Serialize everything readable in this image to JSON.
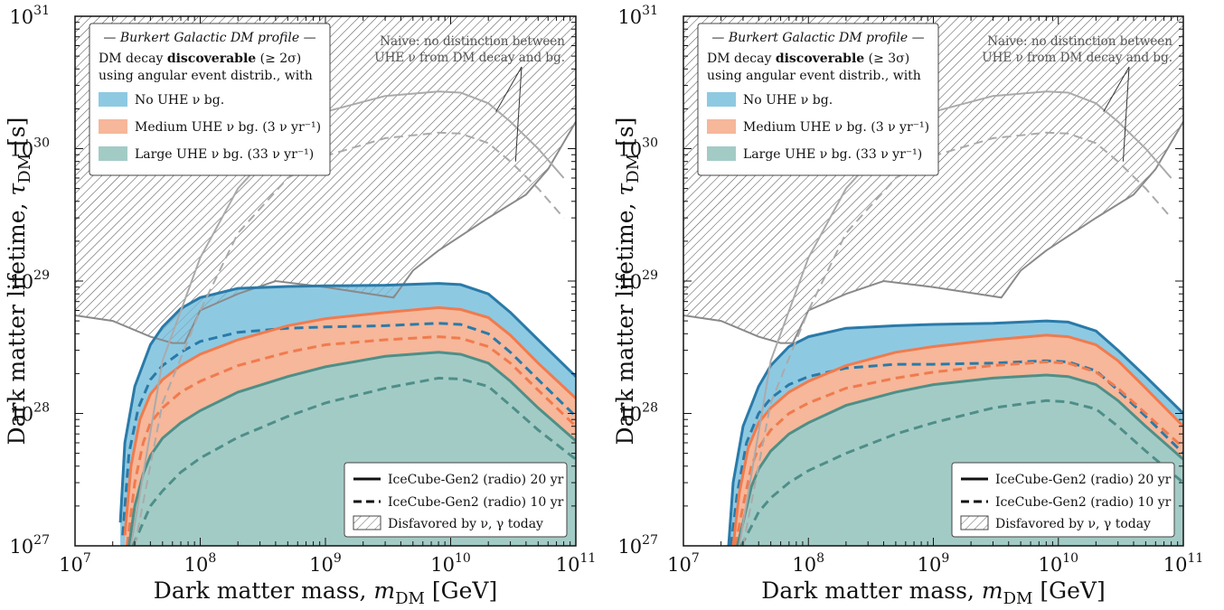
{
  "chart_data": [
    {
      "type": "area",
      "id": "left",
      "x_axis": {
        "label": "Dark matter mass, m_DM [GeV]",
        "scale": "log",
        "lim": [
          10000000.0,
          100000000000.0
        ],
        "tick_labels": [
          "10^7",
          "10^8",
          "10^9",
          "10^10",
          "10^11"
        ]
      },
      "y_axis": {
        "label": "Dark matter lifetime, τ_DM [s]",
        "scale": "log",
        "lim": [
          1e+27,
          1e+31
        ],
        "tick_labels": [
          "10^27",
          "10^28",
          "10^29",
          "10^30",
          "10^31"
        ]
      },
      "legend_upper": {
        "header": "— Burkert Galactic DM profile —",
        "title_line1_pre": "DM decay ",
        "title_line1_bold": "discoverable",
        "title_line1_post": " (≥ 2σ)",
        "title_line2": "using angular event distrib., with",
        "entries": [
          "No UHE ν bg.",
          "Medium UHE ν bg. (3 ν yr⁻¹)",
          "Large UHE ν bg. (33 ν yr⁻¹)"
        ]
      },
      "naive_annotation": [
        "Naive: no distinction between",
        "UHE ν from DM decay and bg."
      ],
      "legend_lower": [
        "IceCube-Gen2 (radio) 20 yr",
        "IceCube-Gen2 (radio) 10 yr",
        "Disfavored by ν, γ today"
      ],
      "series": [
        {
          "name": "No UHE ν bg.",
          "style": "20 yr",
          "color": "#2a7aa8",
          "fill": "#8ec9e2",
          "x": [
            23000000.0,
            25000000.0,
            30000000.0,
            40000000.0,
            50000000.0,
            70000000.0,
            100000000.0,
            200000000.0,
            500000000.0,
            1000000000.0,
            3000000000.0,
            8000000000.0,
            12000000000.0,
            20000000000.0,
            30000000000.0,
            50000000000.0,
            100000000000.0
          ],
          "y": [
            1.5e+27,
            6e+27,
            1.6e+28,
            3.3e+28,
            4.5e+28,
            6.2e+28,
            7.5e+28,
            8.8e+28,
            9.1e+28,
            9.2e+28,
            9.3e+28,
            9.6e+28,
            9.4e+28,
            8e+28,
            5.8e+28,
            3.6e+28,
            1.9e+28
          ]
        },
        {
          "name": "No UHE ν bg.",
          "style": "10 yr",
          "color": "#2a7aa8",
          "x": [
            24000000.0,
            27000000.0,
            32000000.0,
            40000000.0,
            50000000.0,
            70000000.0,
            100000000.0,
            200000000.0,
            500000000.0,
            1000000000.0,
            3000000000.0,
            8000000000.0,
            12000000000.0,
            20000000000.0,
            30000000000.0,
            50000000000.0,
            100000000000.0
          ],
          "y": [
            1.2e+27,
            5e+27,
            1.1e+28,
            1.8e+28,
            2.3e+28,
            2.9e+28,
            3.5e+28,
            4.1e+28,
            4.4e+28,
            4.5e+28,
            4.6e+28,
            4.8e+28,
            4.7e+28,
            4e+28,
            2.9e+28,
            1.8e+28,
            9.5e+27
          ]
        },
        {
          "name": "Medium UHE ν bg. (3 ν yr⁻¹)",
          "style": "20 yr",
          "color": "#f07b4e",
          "fill": "#f6b79a",
          "x": [
            25000000.0,
            28000000.0,
            33000000.0,
            40000000.0,
            50000000.0,
            70000000.0,
            100000000.0,
            200000000.0,
            500000000.0,
            1000000000.0,
            3000000000.0,
            8000000000.0,
            12000000000.0,
            20000000000.0,
            30000000000.0,
            50000000000.0,
            100000000000.0
          ],
          "y": [
            1.2e+27,
            4e+27,
            9e+27,
            1.4e+28,
            1.8e+28,
            2.3e+28,
            2.8e+28,
            3.6e+28,
            4.6e+28,
            5.2e+28,
            5.8e+28,
            6.3e+28,
            6.1e+28,
            5.3e+28,
            3.9e+28,
            2.4e+28,
            1.3e+28
          ]
        },
        {
          "name": "Medium UHE ν bg. (3 ν yr⁻¹)",
          "style": "10 yr",
          "color": "#f07b4e",
          "x": [
            26000000.0,
            30000000.0,
            35000000.0,
            40000000.0,
            50000000.0,
            70000000.0,
            100000000.0,
            200000000.0,
            500000000.0,
            1000000000.0,
            3000000000.0,
            8000000000.0,
            12000000000.0,
            20000000000.0,
            30000000000.0,
            50000000000.0,
            100000000000.0
          ],
          "y": [
            1e+27,
            3e+27,
            6e+27,
            8.5e+27,
            1.1e+28,
            1.45e+28,
            1.75e+28,
            2.3e+28,
            2.9e+28,
            3.3e+28,
            3.6e+28,
            3.8e+28,
            3.7e+28,
            3.2e+28,
            2.4e+28,
            1.5e+28,
            8e+27
          ]
        },
        {
          "name": "Large UHE ν bg. (33 ν yr⁻¹)",
          "style": "20 yr",
          "color": "#4e8f88",
          "fill": "#a3cbc6",
          "x": [
            27000000.0,
            30000000.0,
            35000000.0,
            40000000.0,
            50000000.0,
            70000000.0,
            100000000.0,
            200000000.0,
            500000000.0,
            1000000000.0,
            3000000000.0,
            8000000000.0,
            12000000000.0,
            20000000000.0,
            30000000000.0,
            50000000000.0,
            100000000000.0
          ],
          "y": [
            1e+27,
            2e+27,
            3.5e+27,
            4.8e+27,
            6.5e+27,
            8.5e+27,
            1.05e+28,
            1.45e+28,
            1.9e+28,
            2.25e+28,
            2.7e+28,
            2.9e+28,
            2.8e+28,
            2.4e+28,
            1.75e+28,
            1.1e+28,
            6.2e+27
          ]
        },
        {
          "name": "Large UHE ν bg. (33 ν yr⁻¹)",
          "style": "10 yr",
          "color": "#4e8f88",
          "x": [
            29000000.0,
            35000000.0,
            40000000.0,
            50000000.0,
            70000000.0,
            100000000.0,
            200000000.0,
            500000000.0,
            1000000000.0,
            3000000000.0,
            8000000000.0,
            12000000000.0,
            20000000000.0,
            30000000000.0,
            50000000000.0,
            100000000000.0
          ],
          "y": [
            1e+27,
            1.5e+27,
            2e+27,
            2.6e+27,
            3.6e+27,
            4.6e+27,
            6.6e+27,
            9.5e+27,
            1.2e+28,
            1.55e+28,
            1.85e+28,
            1.82e+28,
            1.6e+28,
            1.15e+28,
            7.5e+27,
            4.5e+27
          ]
        },
        {
          "name": "Naive",
          "style": "20 yr",
          "color": "#aaaaaa",
          "x": [
            28000000.0,
            50000000.0,
            100000000.0,
            200000000.0,
            500000000.0,
            1000000000.0,
            3000000000.0,
            8000000000.0,
            12000000000.0,
            20000000000.0,
            30000000000.0,
            50000000000.0,
            80000000000.0
          ],
          "y": [
            1e+27,
            2.5e+28,
            1.5e+29,
            5e+29,
            1.3e+30,
            1.9e+30,
            2.5e+30,
            2.7e+30,
            2.65e+30,
            2.2e+30,
            1.6e+30,
            1e+30,
            6e+29
          ]
        },
        {
          "name": "Naive",
          "style": "10 yr",
          "color": "#aaaaaa",
          "x": [
            30000000.0,
            50000000.0,
            100000000.0,
            200000000.0,
            500000000.0,
            1000000000.0,
            3000000000.0,
            8000000000.0,
            12000000000.0,
            20000000000.0,
            30000000000.0,
            50000000000.0,
            80000000000.0
          ],
          "y": [
            1e+27,
            1.2e+28,
            6e+28,
            2.3e+29,
            6e+29,
            8.8e+29,
            1.2e+30,
            1.32e+30,
            1.3e+30,
            1.1e+30,
            8e+29,
            5e+29,
            3e+29
          ]
        }
      ],
      "disfavored_boundary": {
        "x": [
          10000000.0,
          20000000.0,
          40000000.0,
          60000000.0,
          75000000.0,
          100000000.0,
          200000000.0,
          400000000.0,
          1000000000.0,
          3500000000.0,
          5000000000.0,
          8000000000.0,
          20000000000.0,
          40000000000.0,
          60000000000.0,
          100000000000.0
        ],
        "y": [
          5.5e+28,
          5e+28,
          3.8e+28,
          3.4e+28,
          3.4e+28,
          6e+28,
          8e+28,
          1e+29,
          9e+28,
          7.5e+28,
          1.2e+29,
          1.7e+29,
          3e+29,
          4.5e+29,
          7e+29,
          1.6e+30
        ]
      }
    },
    {
      "type": "area",
      "id": "right",
      "x_axis": {
        "label": "Dark matter mass, m_DM [GeV]",
        "scale": "log",
        "lim": [
          10000000.0,
          100000000000.0
        ],
        "tick_labels": [
          "10^7",
          "10^8",
          "10^9",
          "10^10",
          "10^11"
        ]
      },
      "y_axis": {
        "label": "Dark matter lifetime, τ_DM [s]",
        "scale": "log",
        "lim": [
          1e+27,
          1e+31
        ],
        "tick_labels": [
          "10^27",
          "10^28",
          "10^29",
          "10^30",
          "10^31"
        ]
      },
      "legend_upper": {
        "header": "— Burkert Galactic DM profile —",
        "title_line1_pre": "DM decay ",
        "title_line1_bold": "discoverable",
        "title_line1_post": " (≥ 3σ)",
        "title_line2": "using angular event distrib., with",
        "entries": [
          "No UHE ν bg.",
          "Medium UHE ν bg. (3 ν yr⁻¹)",
          "Large UHE ν bg. (33 ν yr⁻¹)"
        ]
      },
      "naive_annotation": [
        "Naive: no distinction between",
        "UHE ν from DM decay and bg."
      ],
      "legend_lower": [
        "IceCube-Gen2 (radio) 20 yr",
        "IceCube-Gen2 (radio) 10 yr",
        "Disfavored by ν, γ today"
      ],
      "series": [
        {
          "name": "No UHE ν bg.",
          "style": "20 yr",
          "color": "#2a7aa8",
          "fill": "#8ec9e2",
          "x": [
            23000000.0,
            25000000.0,
            30000000.0,
            40000000.0,
            50000000.0,
            70000000.0,
            100000000.0,
            200000000.0,
            500000000.0,
            1000000000.0,
            3000000000.0,
            8000000000.0,
            12000000000.0,
            20000000000.0,
            30000000000.0,
            50000000000.0,
            100000000000.0
          ],
          "y": [
            1e+27,
            3e+27,
            8e+27,
            1.6e+28,
            2.3e+28,
            3.2e+28,
            3.8e+28,
            4.4e+28,
            4.6e+28,
            4.7e+28,
            4.8e+28,
            5e+28,
            4.9e+28,
            4.2e+28,
            3e+28,
            1.9e+28,
            1e+28
          ]
        },
        {
          "name": "No UHE ν bg.",
          "style": "10 yr",
          "color": "#2a7aa8",
          "x": [
            24000000.0,
            27000000.0,
            32000000.0,
            40000000.0,
            50000000.0,
            70000000.0,
            100000000.0,
            200000000.0,
            500000000.0,
            1000000000.0,
            3000000000.0,
            8000000000.0,
            12000000000.0,
            20000000000.0,
            30000000000.0,
            50000000000.0,
            100000000000.0
          ],
          "y": [
            1e+27,
            2.5e+27,
            6e+27,
            1e+28,
            1.3e+28,
            1.65e+28,
            1.9e+28,
            2.2e+28,
            2.35e+28,
            2.35e+28,
            2.4e+28,
            2.5e+28,
            2.45e+28,
            2.1e+28,
            1.5e+28,
            9.5e+27,
            5e+27
          ]
        },
        {
          "name": "Medium UHE ν bg. (3 ν yr⁻¹)",
          "style": "20 yr",
          "color": "#f07b4e",
          "fill": "#f6b79a",
          "x": [
            25000000.0,
            28000000.0,
            33000000.0,
            40000000.0,
            50000000.0,
            70000000.0,
            100000000.0,
            200000000.0,
            500000000.0,
            1000000000.0,
            3000000000.0,
            8000000000.0,
            12000000000.0,
            20000000000.0,
            30000000000.0,
            50000000000.0,
            100000000000.0
          ],
          "y": [
            1e+27,
            2.5e+27,
            5.5e+27,
            8.5e+27,
            1.1e+28,
            1.45e+28,
            1.75e+28,
            2.3e+28,
            2.9e+28,
            3.2e+28,
            3.6e+28,
            3.9e+28,
            3.8e+28,
            3.3e+28,
            2.5e+28,
            1.55e+28,
            8e+27
          ]
        },
        {
          "name": "Medium UHE ν bg. (3 ν yr⁻¹)",
          "style": "10 yr",
          "color": "#f07b4e",
          "x": [
            26000000.0,
            30000000.0,
            35000000.0,
            40000000.0,
            50000000.0,
            70000000.0,
            100000000.0,
            200000000.0,
            500000000.0,
            1000000000.0,
            3000000000.0,
            8000000000.0,
            12000000000.0,
            20000000000.0,
            30000000000.0,
            50000000000.0,
            100000000000.0
          ],
          "y": [
            1e+27,
            2e+27,
            4e+27,
            5.5e+27,
            7.5e+27,
            1e+28,
            1.2e+28,
            1.55e+28,
            1.85e+28,
            2.05e+28,
            2.3e+28,
            2.45e+28,
            2.4e+28,
            2.05e+28,
            1.55e+28,
            1e+28,
            5.5e+27
          ]
        },
        {
          "name": "Large UHE ν bg. (33 ν yr⁻¹)",
          "style": "20 yr",
          "color": "#4e8f88",
          "fill": "#a3cbc6",
          "x": [
            27000000.0,
            30000000.0,
            35000000.0,
            40000000.0,
            50000000.0,
            70000000.0,
            100000000.0,
            200000000.0,
            500000000.0,
            1000000000.0,
            3000000000.0,
            8000000000.0,
            12000000000.0,
            20000000000.0,
            30000000000.0,
            50000000000.0,
            100000000000.0
          ],
          "y": [
            1e+27,
            1.5e+27,
            2.8e+27,
            3.8e+27,
            5.2e+27,
            7e+27,
            8.5e+27,
            1.15e+28,
            1.45e+28,
            1.65e+28,
            1.85e+28,
            1.95e+28,
            1.9e+28,
            1.65e+28,
            1.25e+28,
            8e+27,
            4.5e+27
          ]
        },
        {
          "name": "Large UHE ν bg. (33 ν yr⁻¹)",
          "style": "10 yr",
          "color": "#4e8f88",
          "x": [
            29000000.0,
            35000000.0,
            40000000.0,
            50000000.0,
            70000000.0,
            100000000.0,
            200000000.0,
            500000000.0,
            1000000000.0,
            3000000000.0,
            8000000000.0,
            12000000000.0,
            20000000000.0,
            30000000000.0,
            50000000000.0,
            100000000000.0
          ],
          "y": [
            1e+27,
            1.4e+27,
            1.8e+27,
            2.3e+27,
            3e+27,
            3.7e+27,
            5e+27,
            7e+27,
            8.5e+27,
            1.1e+28,
            1.25e+28,
            1.22e+28,
            1.08e+28,
            8e+27,
            5.2e+27,
            3e+27
          ]
        },
        {
          "name": "Naive",
          "style": "20 yr",
          "color": "#aaaaaa",
          "x": [
            28000000.0,
            50000000.0,
            100000000.0,
            200000000.0,
            500000000.0,
            1000000000.0,
            3000000000.0,
            8000000000.0,
            12000000000.0,
            20000000000.0,
            30000000000.0,
            50000000000.0,
            80000000000.0
          ],
          "y": [
            1e+27,
            2.5e+28,
            1.5e+29,
            5e+29,
            1.3e+30,
            1.9e+30,
            2.5e+30,
            2.7e+30,
            2.65e+30,
            2.2e+30,
            1.6e+30,
            1e+30,
            6e+29
          ]
        },
        {
          "name": "Naive",
          "style": "10 yr",
          "color": "#aaaaaa",
          "x": [
            30000000.0,
            50000000.0,
            100000000.0,
            200000000.0,
            500000000.0,
            1000000000.0,
            3000000000.0,
            8000000000.0,
            12000000000.0,
            20000000000.0,
            30000000000.0,
            50000000000.0,
            80000000000.0
          ],
          "y": [
            1e+27,
            1.2e+28,
            6e+28,
            2.3e+29,
            6e+29,
            8.8e+29,
            1.2e+30,
            1.32e+30,
            1.3e+30,
            1.1e+30,
            8e+29,
            5e+29,
            3e+29
          ]
        }
      ],
      "disfavored_boundary": {
        "x": [
          10000000.0,
          20000000.0,
          40000000.0,
          60000000.0,
          75000000.0,
          100000000.0,
          200000000.0,
          400000000.0,
          1000000000.0,
          3500000000.0,
          5000000000.0,
          8000000000.0,
          20000000000.0,
          40000000000.0,
          60000000000.0,
          100000000000.0
        ],
        "y": [
          5.5e+28,
          5e+28,
          3.8e+28,
          3.4e+28,
          3.4e+28,
          6e+28,
          8e+28,
          1e+29,
          9e+28,
          7.5e+28,
          1.2e+29,
          1.7e+29,
          3e+29,
          4.5e+29,
          7e+29,
          1.6e+30
        ]
      }
    }
  ]
}
